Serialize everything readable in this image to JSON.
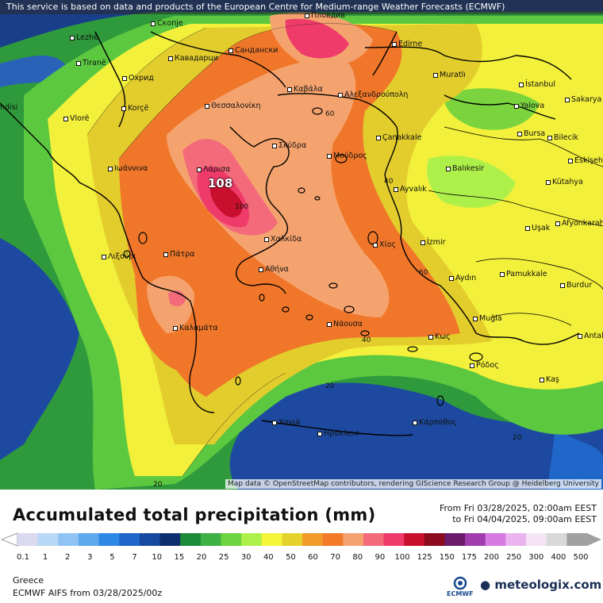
{
  "notice": "This service is based on data and products of the European Centre for Medium-range Weather Forecasts (ECMWF)",
  "attribution": "Map data © OpenStreetMap contributors, rendering GIScience Research Group @ Heidelberg University",
  "max_value_label": "108",
  "cities": [
    {
      "name": "Lezhë"
    },
    {
      "name": "Tiranë"
    },
    {
      "name": "Охрид"
    },
    {
      "name": "Korçë"
    },
    {
      "name": "Vlorë"
    },
    {
      "name": "Скопје"
    },
    {
      "name": "Кавадарци"
    },
    {
      "name": "Сандански"
    },
    {
      "name": "Пловдив"
    },
    {
      "name": "Edirne"
    },
    {
      "name": "Muratlı"
    },
    {
      "name": "İstanbul"
    },
    {
      "name": "Yalova"
    },
    {
      "name": "Sakarya"
    },
    {
      "name": "Bursa"
    },
    {
      "name": "Bilecik"
    },
    {
      "name": "Eskişehir"
    },
    {
      "name": "Kütahya"
    },
    {
      "name": "Afyonkarahisar"
    },
    {
      "name": "Uşak"
    },
    {
      "name": "Balıkesir"
    },
    {
      "name": "Çanakkale"
    },
    {
      "name": "Θεσσαλονίκη"
    },
    {
      "name": "Καβάλα"
    },
    {
      "name": "Αλεξανδρούπολη"
    },
    {
      "name": "Σκύδρα"
    },
    {
      "name": "Μούδρος"
    },
    {
      "name": "Ιωάννινα"
    },
    {
      "name": "Λάρισα"
    },
    {
      "name": "Ayvalık"
    },
    {
      "name": "Χαλκίδα"
    },
    {
      "name": "Χίος"
    },
    {
      "name": "İzmir"
    },
    {
      "name": "Λιξούρι"
    },
    {
      "name": "Πάτρα"
    },
    {
      "name": "Αθήνα"
    },
    {
      "name": "Aydın"
    },
    {
      "name": "Pamukkale"
    },
    {
      "name": "Burdur"
    },
    {
      "name": "Καλαμάτα"
    },
    {
      "name": "Νάουσα"
    },
    {
      "name": "Muğla"
    },
    {
      "name": "Κως"
    },
    {
      "name": "Antal"
    },
    {
      "name": "Ρόδος"
    },
    {
      "name": "Kaş"
    },
    {
      "name": "Χανιά"
    },
    {
      "name": "Ηράκλειο"
    },
    {
      "name": "Κάρπαθος"
    },
    {
      "name": "ndisi"
    }
  ],
  "contour_labels": [
    "60",
    "40",
    "20",
    "60",
    "40",
    "20",
    "20",
    "100"
  ],
  "legend": {
    "title": "Accumulated total precipitation (mm)",
    "period_from": "From Fri 03/28/2025, 02:00am EEST",
    "period_to": "to Fri 04/04/2025, 09:00am EEST",
    "ticks": [
      "0.1",
      "1",
      "2",
      "3",
      "5",
      "7",
      "10",
      "15",
      "20",
      "25",
      "30",
      "40",
      "50",
      "60",
      "70",
      "80",
      "90",
      "100",
      "125",
      "150",
      "175",
      "200",
      "250",
      "300",
      "400",
      "500"
    ],
    "colors": [
      "#d9d9f0",
      "#b8d8f5",
      "#8ec3f3",
      "#5ea8ee",
      "#2e89e6",
      "#1f67c8",
      "#164aa0",
      "#0e2f6e",
      "#1d8a3a",
      "#3fb043",
      "#6bd43e",
      "#aef04a",
      "#f5f53a",
      "#e5d22d",
      "#f29b2b",
      "#f37a29",
      "#f5a36e",
      "#f36b7a",
      "#ef3b6a",
      "#c8102e",
      "#8c0a1e",
      "#6a1a6b",
      "#a23db0",
      "#d77be3",
      "#eab5ee",
      "#f4e4f4",
      "#d9d9d9",
      "#a0a0a0"
    ],
    "region": "Greece",
    "model": "ECMWF AIFS from  03/28/2025/00z",
    "logo_text": "ECMWF",
    "brand": "meteologix.com"
  }
}
